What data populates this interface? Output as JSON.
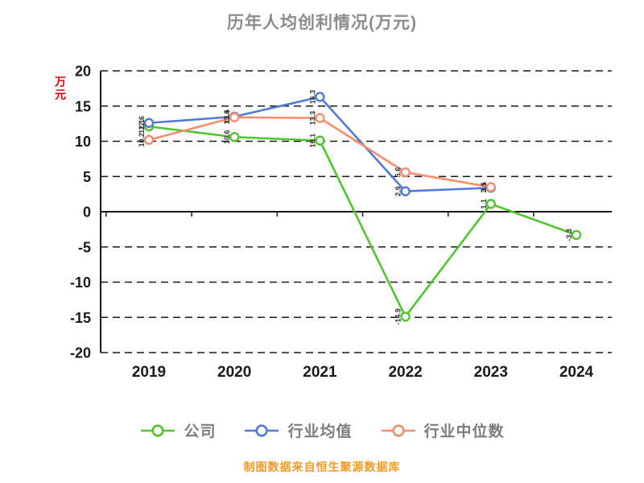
{
  "title": "历年人均创利情况(万元)",
  "y_axis_unit_label": "万元",
  "footer": "制图数据来自恒生聚源数据库",
  "colors": {
    "title_text": "#8c8c8c",
    "axis_text": "#1a1a1a",
    "grid_line": "#1a1a1a",
    "unit_label": "#e60000",
    "footer_text": "#f59a23",
    "legend_text": "#7d7d7d",
    "company": "#4fc62b",
    "industry_avg": "#5079d9",
    "industry_median": "#f98d6b"
  },
  "chart_data": {
    "type": "line",
    "title": "历年人均创利情况(万元)",
    "ylabel": "万元",
    "categories": [
      "2019",
      "2020",
      "2021",
      "2022",
      "2023",
      "2024"
    ],
    "series": [
      {
        "name": "公司",
        "key": "company",
        "color": "#4fc62b",
        "values": [
          12.1,
          10.6,
          10.1,
          -14.9,
          1.1,
          -3.3
        ]
      },
      {
        "name": "行业均值",
        "key": "industry-avg",
        "color": "#5079d9",
        "values": [
          12.6,
          13.5,
          16.3,
          2.9,
          3.4,
          null
        ]
      },
      {
        "name": "行业中位数",
        "key": "industry-median",
        "color": "#f98d6b",
        "values": [
          10.2,
          13.4,
          13.3,
          5.6,
          3.5,
          null
        ]
      }
    ],
    "ylim": [
      -20,
      20
    ],
    "yticks": [
      20,
      15,
      10,
      5,
      0,
      -5,
      -10,
      -15,
      -20
    ],
    "grid": "dashed-horizontal",
    "legend_position": "bottom",
    "source_note": "制图数据来自恒生聚源数据库"
  }
}
